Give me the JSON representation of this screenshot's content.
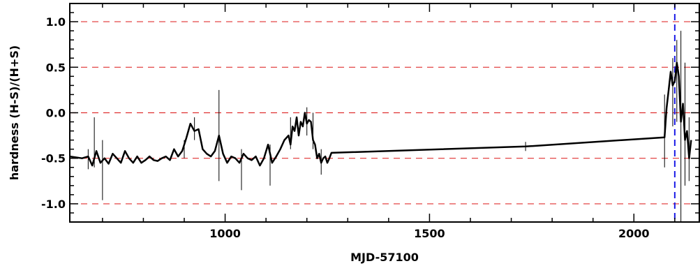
{
  "chart_data": {
    "type": "line",
    "title": "",
    "xlabel": "MJD-57100",
    "ylabel": "hardness (H-S)/(H+S)",
    "xlim": [
      620,
      2160
    ],
    "ylim": [
      -1.2,
      1.2
    ],
    "x_ticks": [
      1000,
      1500,
      2000
    ],
    "x_tick_labels": [
      "1000",
      "1500",
      "2000"
    ],
    "y_ticks": [
      1.0,
      0.5,
      0.0,
      -0.5,
      -1.0
    ],
    "y_tick_labels": [
      "1.0",
      "0.5",
      "0.0",
      "-0.5",
      "-1.0"
    ],
    "reference_lines": {
      "horizontal_red_dashed": [
        1.0,
        0.5,
        0.0,
        -0.5,
        -1.0
      ],
      "vertical_blue_dashed": [
        2100
      ]
    },
    "colors": {
      "series": "#000000",
      "horizontal_ref": "#e03030",
      "vertical_ref": "#1a1ae6"
    },
    "series": [
      {
        "x": [
          620,
          650,
          665,
          675,
          685,
          695,
          705,
          715,
          725,
          735,
          745,
          755,
          765,
          775,
          785,
          795,
          805,
          815,
          825,
          835,
          845,
          855,
          865,
          875,
          885,
          895,
          905,
          915,
          925,
          935,
          945,
          955,
          965,
          975,
          985,
          995,
          1005,
          1015,
          1025,
          1035,
          1045,
          1055,
          1065,
          1075,
          1085,
          1095,
          1105,
          1115,
          1125,
          1135,
          1145,
          1155,
          1160,
          1165,
          1170,
          1175,
          1180,
          1185,
          1190,
          1195,
          1200,
          1205,
          1210,
          1215,
          1220,
          1225,
          1230,
          1235,
          1240,
          1245,
          1250,
          1255,
          1260,
          1735,
          2075,
          2080,
          2085,
          2090,
          2095,
          2100,
          2105,
          2110,
          2115,
          2120,
          2125,
          2130,
          2135,
          2140
        ],
        "y": [
          -0.48,
          -0.5,
          -0.48,
          -0.58,
          -0.42,
          -0.55,
          -0.5,
          -0.56,
          -0.45,
          -0.5,
          -0.55,
          -0.42,
          -0.5,
          -0.55,
          -0.48,
          -0.55,
          -0.52,
          -0.48,
          -0.52,
          -0.53,
          -0.5,
          -0.48,
          -0.52,
          -0.4,
          -0.48,
          -0.42,
          -0.28,
          -0.12,
          -0.2,
          -0.18,
          -0.4,
          -0.45,
          -0.48,
          -0.42,
          -0.25,
          -0.45,
          -0.55,
          -0.48,
          -0.5,
          -0.55,
          -0.45,
          -0.5,
          -0.52,
          -0.48,
          -0.58,
          -0.5,
          -0.35,
          -0.55,
          -0.48,
          -0.4,
          -0.3,
          -0.25,
          -0.35,
          -0.15,
          -0.2,
          -0.05,
          -0.25,
          -0.1,
          -0.15,
          0.0,
          -0.12,
          -0.08,
          -0.1,
          -0.3,
          -0.35,
          -0.5,
          -0.45,
          -0.55,
          -0.5,
          -0.48,
          -0.55,
          -0.5,
          -0.44,
          -0.37,
          -0.27,
          0.05,
          0.25,
          0.45,
          0.3,
          0.35,
          0.55,
          0.4,
          -0.1,
          0.1,
          -0.3,
          -0.2,
          -0.5,
          -0.3
        ]
      }
    ],
    "error_bars": [
      {
        "x": 665,
        "low": -0.62,
        "high": -0.4
      },
      {
        "x": 680,
        "low": -0.6,
        "high": -0.05
      },
      {
        "x": 700,
        "low": -0.96,
        "high": -0.3
      },
      {
        "x": 900,
        "low": -0.5,
        "high": -0.3
      },
      {
        "x": 925,
        "low": -0.3,
        "high": -0.05
      },
      {
        "x": 985,
        "low": -0.75,
        "high": 0.25
      },
      {
        "x": 1040,
        "low": -0.85,
        "high": -0.4
      },
      {
        "x": 1110,
        "low": -0.8,
        "high": -0.35
      },
      {
        "x": 1160,
        "low": -0.4,
        "high": -0.05
      },
      {
        "x": 1200,
        "low": -0.25,
        "high": 0.06
      },
      {
        "x": 1215,
        "low": -0.4,
        "high": 0.0
      },
      {
        "x": 1235,
        "low": -0.68,
        "high": -0.4
      },
      {
        "x": 1735,
        "low": -0.42,
        "high": -0.32
      },
      {
        "x": 2075,
        "low": -0.6,
        "high": 0.2
      },
      {
        "x": 2095,
        "low": -0.15,
        "high": 0.6
      },
      {
        "x": 2105,
        "low": -0.1,
        "high": 0.8
      },
      {
        "x": 2115,
        "low": -1.2,
        "high": 0.9
      },
      {
        "x": 2125,
        "low": -0.8,
        "high": 0.55
      },
      {
        "x": 2135,
        "low": -0.75,
        "high": -0.05
      }
    ]
  }
}
